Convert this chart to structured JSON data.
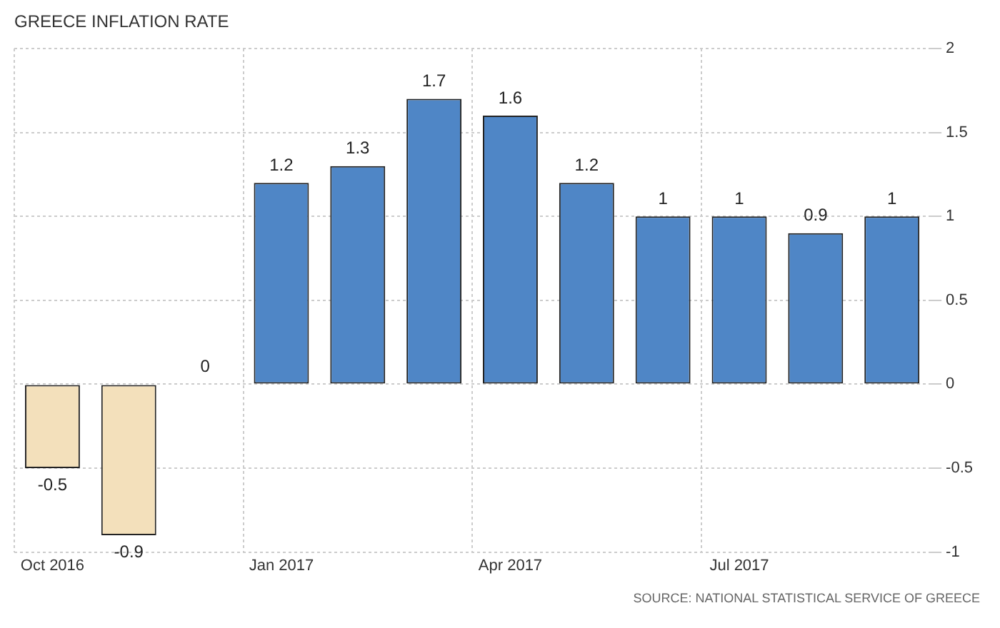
{
  "chart_data": {
    "type": "bar",
    "title": "GREECE INFLATION RATE",
    "categories": [
      "Oct 2016",
      null,
      null,
      "Jan 2017",
      null,
      null,
      "Apr 2017",
      null,
      null,
      "Jul 2017",
      null,
      null
    ],
    "values": [
      -0.5,
      -0.9,
      0,
      1.2,
      1.3,
      1.7,
      1.6,
      1.2,
      1,
      1,
      0.9,
      1
    ],
    "colors": [
      "#f3e0bb",
      "#f3e0bb",
      "#f3e0bb",
      "#4f86c6",
      "#4f86c6",
      "#4f86c6",
      "#4f86c6",
      "#4f86c6",
      "#4f86c6",
      "#4f86c6",
      "#4f86c6",
      "#4f86c6"
    ],
    "ylim": [
      -1,
      2
    ],
    "yticks": [
      -1,
      -0.5,
      0,
      0.5,
      1,
      1.5,
      2
    ],
    "grid": true,
    "data_labels": true,
    "annotations": [
      "SOURCE: NATIONAL STATISTICAL SERVICE OF GREECE"
    ]
  }
}
